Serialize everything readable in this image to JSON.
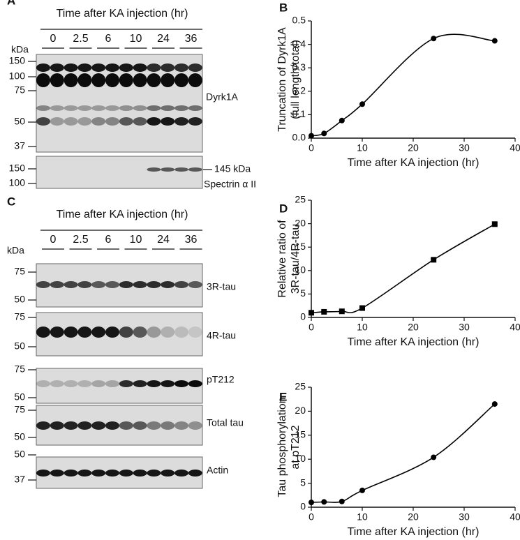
{
  "panel_A": {
    "label": "A",
    "header": "Time after KA injection (hr)",
    "lanes": [
      "0",
      "2.5",
      "6",
      "10",
      "24",
      "36"
    ],
    "kda": "kDa",
    "markers": [
      "150",
      "100",
      "75",
      "50",
      "37"
    ],
    "band_label": "Dyrk1A",
    "markers_2": [
      "150",
      "100"
    ],
    "arrow_label": "145 kDa",
    "band_label_2": "Spectrin α II"
  },
  "panel_C": {
    "label": "C",
    "header": "Time after KA injection (hr)",
    "lanes": [
      "0",
      "2.5",
      "6",
      "10",
      "24",
      "36"
    ],
    "kda": "kDa",
    "blots": [
      {
        "label": "3R-tau",
        "markers": [
          "75",
          "50"
        ]
      },
      {
        "label": "4R-tau",
        "markers": [
          "75",
          "50"
        ]
      },
      {
        "label": "pT212",
        "markers": [
          "75",
          "50"
        ]
      },
      {
        "label": "Total tau",
        "markers": [
          "75",
          "50"
        ]
      },
      {
        "label": "Actin",
        "markers": [
          "50",
          "37"
        ]
      }
    ]
  },
  "chart_data": [
    {
      "type": "line",
      "panel": "B",
      "ylabel": [
        "Truncation of Dyrk1A",
        "(full length/total)"
      ],
      "xlabel": "Time after KA injection (hr)",
      "x": [
        0,
        2.5,
        6,
        10,
        24,
        36
      ],
      "values": [
        0.01,
        0.02,
        0.075,
        0.145,
        0.425,
        0.415
      ],
      "marker": "circle",
      "color": "#000000",
      "xlim": [
        0,
        40
      ],
      "xticks": [
        0,
        10,
        20,
        30,
        40
      ],
      "ylim": [
        0,
        0.5
      ],
      "yticks": [
        {
          "value": 0,
          "label": "0.0"
        },
        0.1,
        0.2,
        0.3,
        0.4,
        0.5
      ]
    },
    {
      "type": "line",
      "panel": "D",
      "ylabel": [
        "Relative ratio of",
        "3R-tau/4R-tau"
      ],
      "xlabel": "Time after KA injection (hr)",
      "x": [
        0,
        2.5,
        6,
        10,
        24,
        36
      ],
      "values": [
        1,
        1.2,
        1.3,
        2,
        12.3,
        19.9
      ],
      "marker": "square",
      "color": "#000000",
      "xlim": [
        0,
        40
      ],
      "xticks": [
        0,
        10,
        20,
        30,
        40
      ],
      "ylim": [
        0,
        25
      ],
      "yticks": [
        0,
        5,
        10,
        15,
        20,
        25
      ]
    },
    {
      "type": "line",
      "panel": "E",
      "ylabel": [
        "Tau phosphorylation",
        "at pT212"
      ],
      "xlabel": "Time after KA injection (hr)",
      "x": [
        0,
        2.5,
        6,
        10,
        24,
        36
      ],
      "values": [
        1,
        1.1,
        1.2,
        3.5,
        10.4,
        21.5
      ],
      "marker": "circle",
      "color": "#000000",
      "xlim": [
        0,
        40
      ],
      "xticks": [
        0,
        10,
        20,
        30,
        40
      ],
      "ylim": [
        0,
        25
      ],
      "yticks": [
        0,
        5,
        10,
        15,
        20,
        25
      ]
    }
  ]
}
